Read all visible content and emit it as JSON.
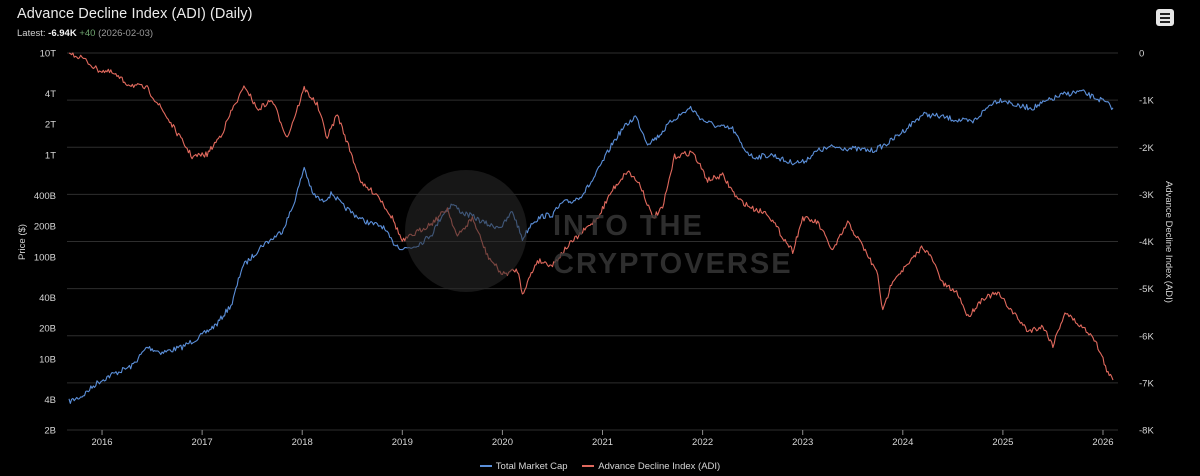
{
  "header": {
    "title": "Advance Decline Index (ADI) (Daily)",
    "latest_label": "Latest:",
    "latest_value": "-6.94K",
    "latest_change": "+40",
    "latest_date": "(2026-02-03)"
  },
  "menu": {
    "icon": "hamburger-menu-icon"
  },
  "watermark": {
    "line1": "INTO THE",
    "line2": "CRYPTOVERSE"
  },
  "colors": {
    "market_cap": "#5b8fd9",
    "adi": "#e0695d",
    "background": "#000000",
    "grid": "#2e2e2e"
  },
  "chart_data": {
    "type": "line",
    "title": "Advance Decline Index (ADI) (Daily)",
    "x_ticks": [
      "2016",
      "2017",
      "2018",
      "2019",
      "2020",
      "2021",
      "2022",
      "2023",
      "2024",
      "2025",
      "2026"
    ],
    "x_range": [
      2015.65,
      2026.15
    ],
    "y_left": {
      "label": "Price ($)",
      "scale": "log",
      "range": [
        2000000000,
        10000000000000
      ],
      "ticks": [
        {
          "v": 2000000000,
          "t": "2B"
        },
        {
          "v": 4000000000,
          "t": "4B"
        },
        {
          "v": 10000000000,
          "t": "10B"
        },
        {
          "v": 20000000000,
          "t": "20B"
        },
        {
          "v": 40000000000,
          "t": "40B"
        },
        {
          "v": 100000000000,
          "t": "100B"
        },
        {
          "v": 200000000000,
          "t": "200B"
        },
        {
          "v": 400000000000,
          "t": "400B"
        },
        {
          "v": 1000000000000,
          "t": "1T"
        },
        {
          "v": 2000000000000,
          "t": "2T"
        },
        {
          "v": 4000000000000,
          "t": "4T"
        },
        {
          "v": 10000000000000,
          "t": "10T"
        }
      ]
    },
    "y_right": {
      "label": "Advance Decline Index (ADI)",
      "scale": "linear",
      "range": [
        -8000,
        0
      ],
      "ticks": [
        {
          "v": 0,
          "t": "0"
        },
        {
          "v": -1000,
          "t": "-1K"
        },
        {
          "v": -2000,
          "t": "-2K"
        },
        {
          "v": -3000,
          "t": "-3K"
        },
        {
          "v": -4000,
          "t": "-4K"
        },
        {
          "v": -5000,
          "t": "-5K"
        },
        {
          "v": -6000,
          "t": "-6K"
        },
        {
          "v": -7000,
          "t": "-7K"
        },
        {
          "v": -8000,
          "t": "-8K"
        }
      ]
    },
    "grid": true,
    "legend_position": "bottom-center",
    "series": [
      {
        "name": "Total Market Cap",
        "axis": "left",
        "color": "#5b8fd9",
        "points": [
          [
            2015.67,
            3800000000
          ],
          [
            2015.8,
            4300000000
          ],
          [
            2015.95,
            5800000000
          ],
          [
            2016.1,
            7000000000
          ],
          [
            2016.3,
            8500000000
          ],
          [
            2016.45,
            13000000000
          ],
          [
            2016.6,
            11500000000
          ],
          [
            2016.8,
            13000000000
          ],
          [
            2017.0,
            17000000000
          ],
          [
            2017.15,
            22000000000
          ],
          [
            2017.3,
            35000000000
          ],
          [
            2017.4,
            80000000000
          ],
          [
            2017.5,
            100000000000
          ],
          [
            2017.6,
            130000000000
          ],
          [
            2017.7,
            150000000000
          ],
          [
            2017.8,
            180000000000
          ],
          [
            2017.9,
            300000000000
          ],
          [
            2017.97,
            500000000000
          ],
          [
            2018.02,
            760000000000
          ],
          [
            2018.1,
            420000000000
          ],
          [
            2018.2,
            350000000000
          ],
          [
            2018.3,
            420000000000
          ],
          [
            2018.4,
            320000000000
          ],
          [
            2018.5,
            270000000000
          ],
          [
            2018.6,
            230000000000
          ],
          [
            2018.7,
            210000000000
          ],
          [
            2018.8,
            200000000000
          ],
          [
            2018.9,
            140000000000
          ],
          [
            2019.0,
            120000000000
          ],
          [
            2019.1,
            125000000000
          ],
          [
            2019.2,
            140000000000
          ],
          [
            2019.3,
            170000000000
          ],
          [
            2019.4,
            260000000000
          ],
          [
            2019.5,
            330000000000
          ],
          [
            2019.6,
            270000000000
          ],
          [
            2019.7,
            250000000000
          ],
          [
            2019.8,
            220000000000
          ],
          [
            2019.9,
            200000000000
          ],
          [
            2020.0,
            200000000000
          ],
          [
            2020.1,
            280000000000
          ],
          [
            2020.2,
            150000000000
          ],
          [
            2020.3,
            220000000000
          ],
          [
            2020.4,
            250000000000
          ],
          [
            2020.5,
            260000000000
          ],
          [
            2020.6,
            340000000000
          ],
          [
            2020.7,
            350000000000
          ],
          [
            2020.8,
            410000000000
          ],
          [
            2020.9,
            560000000000
          ],
          [
            2021.0,
            850000000000
          ],
          [
            2021.1,
            1300000000000
          ],
          [
            2021.2,
            1800000000000
          ],
          [
            2021.33,
            2400000000000
          ],
          [
            2021.45,
            1300000000000
          ],
          [
            2021.55,
            1500000000000
          ],
          [
            2021.7,
            2200000000000
          ],
          [
            2021.88,
            2900000000000
          ],
          [
            2022.0,
            2200000000000
          ],
          [
            2022.15,
            1900000000000
          ],
          [
            2022.3,
            1800000000000
          ],
          [
            2022.4,
            1200000000000
          ],
          [
            2022.5,
            950000000000
          ],
          [
            2022.7,
            1000000000000
          ],
          [
            2022.85,
            850000000000
          ],
          [
            2023.0,
            850000000000
          ],
          [
            2023.15,
            1100000000000
          ],
          [
            2023.3,
            1200000000000
          ],
          [
            2023.5,
            1150000000000
          ],
          [
            2023.7,
            1100000000000
          ],
          [
            2023.85,
            1300000000000
          ],
          [
            2024.0,
            1700000000000
          ],
          [
            2024.2,
            2500000000000
          ],
          [
            2024.35,
            2400000000000
          ],
          [
            2024.55,
            2200000000000
          ],
          [
            2024.7,
            2100000000000
          ],
          [
            2024.9,
            3300000000000
          ],
          [
            2025.0,
            3500000000000
          ],
          [
            2025.15,
            3000000000000
          ],
          [
            2025.3,
            2900000000000
          ],
          [
            2025.45,
            3400000000000
          ],
          [
            2025.6,
            3900000000000
          ],
          [
            2025.78,
            4200000000000
          ],
          [
            2025.9,
            3700000000000
          ],
          [
            2026.0,
            3400000000000
          ],
          [
            2026.1,
            2900000000000
          ]
        ]
      },
      {
        "name": "Advance Decline Index (ADI)",
        "axis": "right",
        "color": "#e0695d",
        "points": [
          [
            2015.67,
            0
          ],
          [
            2015.8,
            -100
          ],
          [
            2015.95,
            -350
          ],
          [
            2016.1,
            -420
          ],
          [
            2016.25,
            -650
          ],
          [
            2016.45,
            -750
          ],
          [
            2016.6,
            -1200
          ],
          [
            2016.75,
            -1700
          ],
          [
            2016.9,
            -2200
          ],
          [
            2017.05,
            -2150
          ],
          [
            2017.2,
            -1700
          ],
          [
            2017.3,
            -1200
          ],
          [
            2017.43,
            -700
          ],
          [
            2017.55,
            -1200
          ],
          [
            2017.7,
            -1000
          ],
          [
            2017.85,
            -1800
          ],
          [
            2018.02,
            -750
          ],
          [
            2018.15,
            -1100
          ],
          [
            2018.25,
            -1800
          ],
          [
            2018.35,
            -1300
          ],
          [
            2018.5,
            -2200
          ],
          [
            2018.6,
            -2800
          ],
          [
            2018.75,
            -3000
          ],
          [
            2018.9,
            -3500
          ],
          [
            2019.0,
            -4000
          ],
          [
            2019.15,
            -3800
          ],
          [
            2019.3,
            -3600
          ],
          [
            2019.45,
            -3300
          ],
          [
            2019.55,
            -3900
          ],
          [
            2019.7,
            -3500
          ],
          [
            2019.85,
            -4300
          ],
          [
            2020.0,
            -4700
          ],
          [
            2020.15,
            -4600
          ],
          [
            2020.2,
            -5100
          ],
          [
            2020.35,
            -4400
          ],
          [
            2020.5,
            -4500
          ],
          [
            2020.65,
            -4100
          ],
          [
            2020.8,
            -3800
          ],
          [
            2020.95,
            -3500
          ],
          [
            2021.1,
            -2900
          ],
          [
            2021.25,
            -2500
          ],
          [
            2021.38,
            -2800
          ],
          [
            2021.5,
            -3500
          ],
          [
            2021.6,
            -3300
          ],
          [
            2021.72,
            -2200
          ],
          [
            2021.9,
            -2100
          ],
          [
            2022.05,
            -2700
          ],
          [
            2022.2,
            -2600
          ],
          [
            2022.35,
            -3100
          ],
          [
            2022.5,
            -3300
          ],
          [
            2022.65,
            -3400
          ],
          [
            2022.8,
            -3900
          ],
          [
            2022.9,
            -4200
          ],
          [
            2023.0,
            -3500
          ],
          [
            2023.15,
            -3600
          ],
          [
            2023.3,
            -4200
          ],
          [
            2023.45,
            -3600
          ],
          [
            2023.6,
            -4100
          ],
          [
            2023.75,
            -4700
          ],
          [
            2023.8,
            -5500
          ],
          [
            2023.9,
            -4800
          ],
          [
            2024.05,
            -4500
          ],
          [
            2024.2,
            -4100
          ],
          [
            2024.3,
            -4400
          ],
          [
            2024.4,
            -4900
          ],
          [
            2024.55,
            -5100
          ],
          [
            2024.65,
            -5600
          ],
          [
            2024.8,
            -5200
          ],
          [
            2024.95,
            -5100
          ],
          [
            2025.1,
            -5500
          ],
          [
            2025.25,
            -5900
          ],
          [
            2025.4,
            -5800
          ],
          [
            2025.5,
            -6200
          ],
          [
            2025.62,
            -5500
          ],
          [
            2025.78,
            -5800
          ],
          [
            2025.9,
            -6000
          ],
          [
            2026.0,
            -6500
          ],
          [
            2026.05,
            -6800
          ],
          [
            2026.1,
            -6940
          ]
        ]
      }
    ]
  },
  "legend": [
    {
      "label": "Total Market Cap",
      "color": "#5b8fd9"
    },
    {
      "label": "Advance Decline Index (ADI)",
      "color": "#e0695d"
    }
  ]
}
